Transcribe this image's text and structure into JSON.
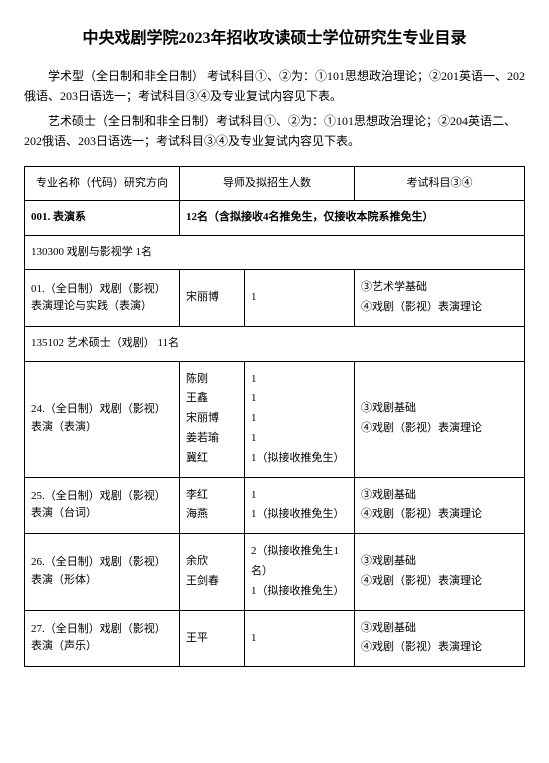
{
  "title": "中央戏剧学院2023年招收攻读硕士学位研究生专业目录",
  "intro": {
    "p1": "学术型（全日制和非全日制）  考试科目①、②为：①101思想政治理论；②201英语一、202俄语、203日语选一；考试科目③④及专业复试内容见下表。",
    "p2": "艺术硕士（全日制和非全日制）考试科目①、②为：①101思想政治理论；②204英语二、202俄语、203日语选一；考试科目③④及专业复试内容见下表。"
  },
  "headers": {
    "major": "专业名称（代码）研究方向",
    "advisor": "导师及拟招生人数",
    "exam": "考试科目③④"
  },
  "dept": {
    "code": "001. 表演系",
    "quota": "12名（含拟接收4名推免生，仅接收本院系推免生）"
  },
  "sub1": {
    "text": "130300 戏剧与影视学            1名"
  },
  "row1": {
    "major": "01.（全日制）戏剧（影视）表演理论与实践（表演）",
    "advisor": "宋丽博",
    "num": "1",
    "exam": "③艺术学基础\n④戏剧（影视）表演理论"
  },
  "sub2": {
    "text": "135102 艺术硕士（戏剧）         11名"
  },
  "row24": {
    "major": "24.（全日制）戏剧（影视）表演（表演）",
    "advisor": "陈刚\n王鑫\n宋丽博\n姜若瑜\n冀红",
    "num": "1\n1\n1\n1\n1（拟接收推免生）",
    "exam": "③戏剧基础\n④戏剧（影视）表演理论"
  },
  "row25": {
    "major": "25.（全日制）戏剧（影视）表演（台词）",
    "advisor": "李红\n海燕",
    "num": "1\n1（拟接收推免生）",
    "exam": "③戏剧基础\n④戏剧（影视）表演理论"
  },
  "row26": {
    "major": "26.（全日制）戏剧（影视）表演（形体）",
    "advisor": "余欣\n王剑春",
    "num": "2（拟接收推免生1名）\n1（拟接收推免生）",
    "exam": "③戏剧基础\n④戏剧（影视）表演理论"
  },
  "row27": {
    "major": "27.（全日制）戏剧（影视）表演（声乐）",
    "advisor": "王平",
    "num": "1",
    "exam": "③戏剧基础\n④戏剧（影视）表演理论"
  }
}
